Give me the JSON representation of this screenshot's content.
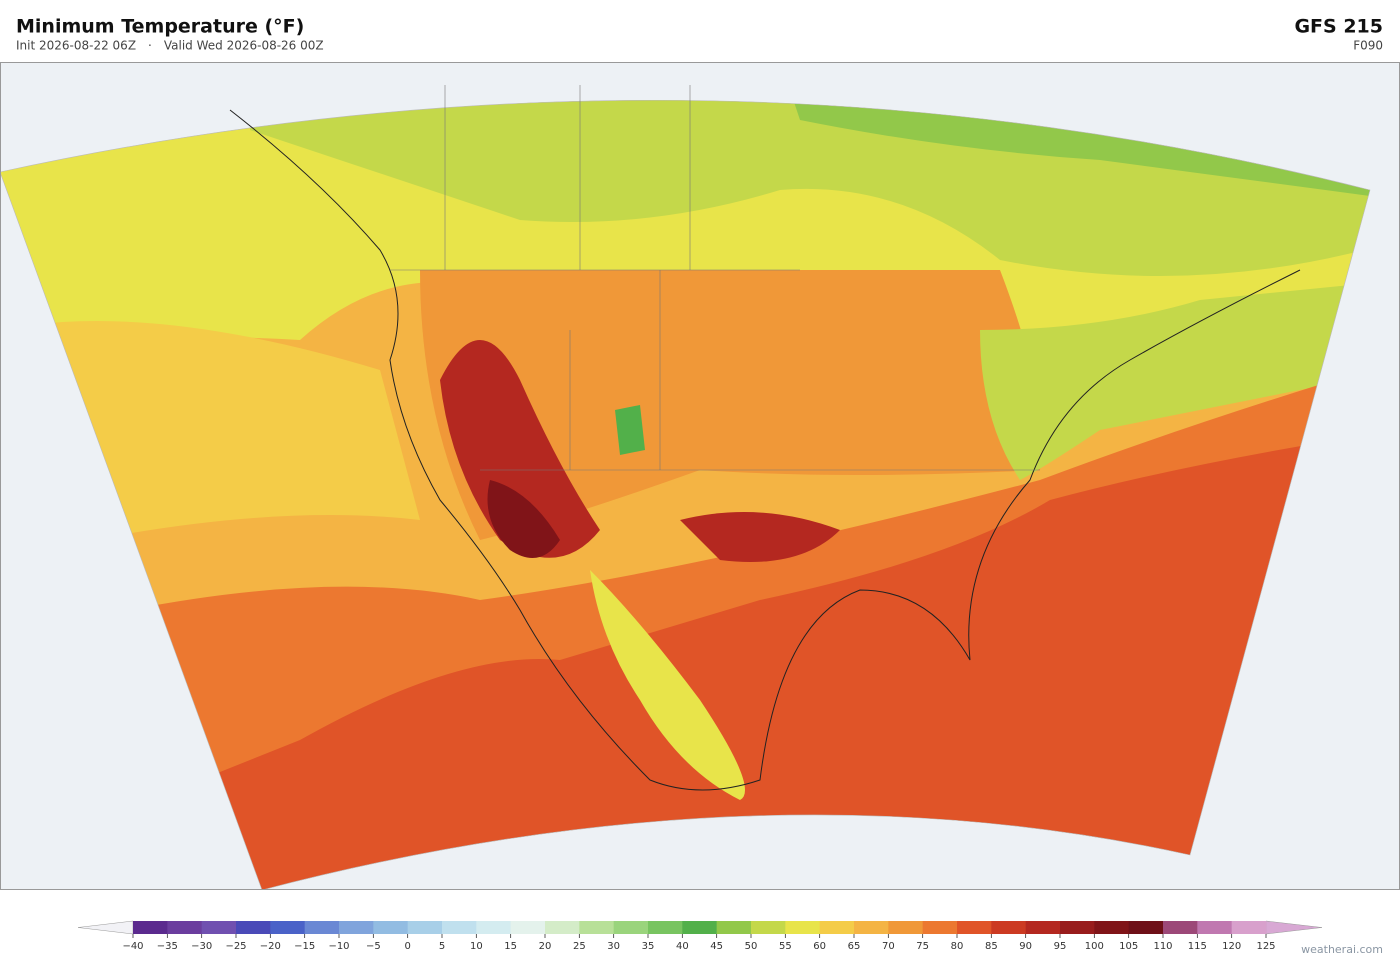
{
  "header": {
    "title": "Minimum Temperature  (°F)",
    "init": "Init 2026-08-22 06Z",
    "separator": "·",
    "valid": "Valid Wed 2026-08-26 00Z",
    "model": "GFS  215",
    "forecast_hour": "F090"
  },
  "colorbar": {
    "ticks": [
      {
        "value": -40,
        "label": "−40"
      },
      {
        "value": -35,
        "label": "−35"
      },
      {
        "value": -30,
        "label": "−30"
      },
      {
        "value": -25,
        "label": "−25"
      },
      {
        "value": -20,
        "label": "−20"
      },
      {
        "value": -15,
        "label": "−15"
      },
      {
        "value": -10,
        "label": "−10"
      },
      {
        "value": -5,
        "label": "−5"
      },
      0,
      5,
      10,
      15,
      20,
      25,
      30,
      35,
      40,
      45,
      50,
      55,
      60,
      65,
      70,
      75,
      80,
      85,
      90,
      95,
      100,
      105,
      110,
      115,
      120,
      125
    ],
    "colors": [
      "#5b2a8e",
      "#6b3d9e",
      "#7050b0",
      "#4a4ab8",
      "#4a62c8",
      "#6a88d4",
      "#80a4dc",
      "#92bce2",
      "#a8cfe8",
      "#c0e0ee",
      "#d4ecf0",
      "#e4f2ec",
      "#d4ecc8",
      "#b8e098",
      "#9ad47c",
      "#78c460",
      "#52b04a",
      "#92c84a",
      "#c4d84a",
      "#e8e44a",
      "#f4cc48",
      "#f4b444",
      "#f09838",
      "#ec7830",
      "#e05428",
      "#cc3a22",
      "#b42820",
      "#981c1c",
      "#801418",
      "#6e1018",
      "#9c4878",
      "#c078b0",
      "#d8a0cc"
    ],
    "under_color": "#f2f2f6",
    "over_color": "#d8a8d4"
  },
  "footer": {
    "credit": "weatherai.com"
  }
}
